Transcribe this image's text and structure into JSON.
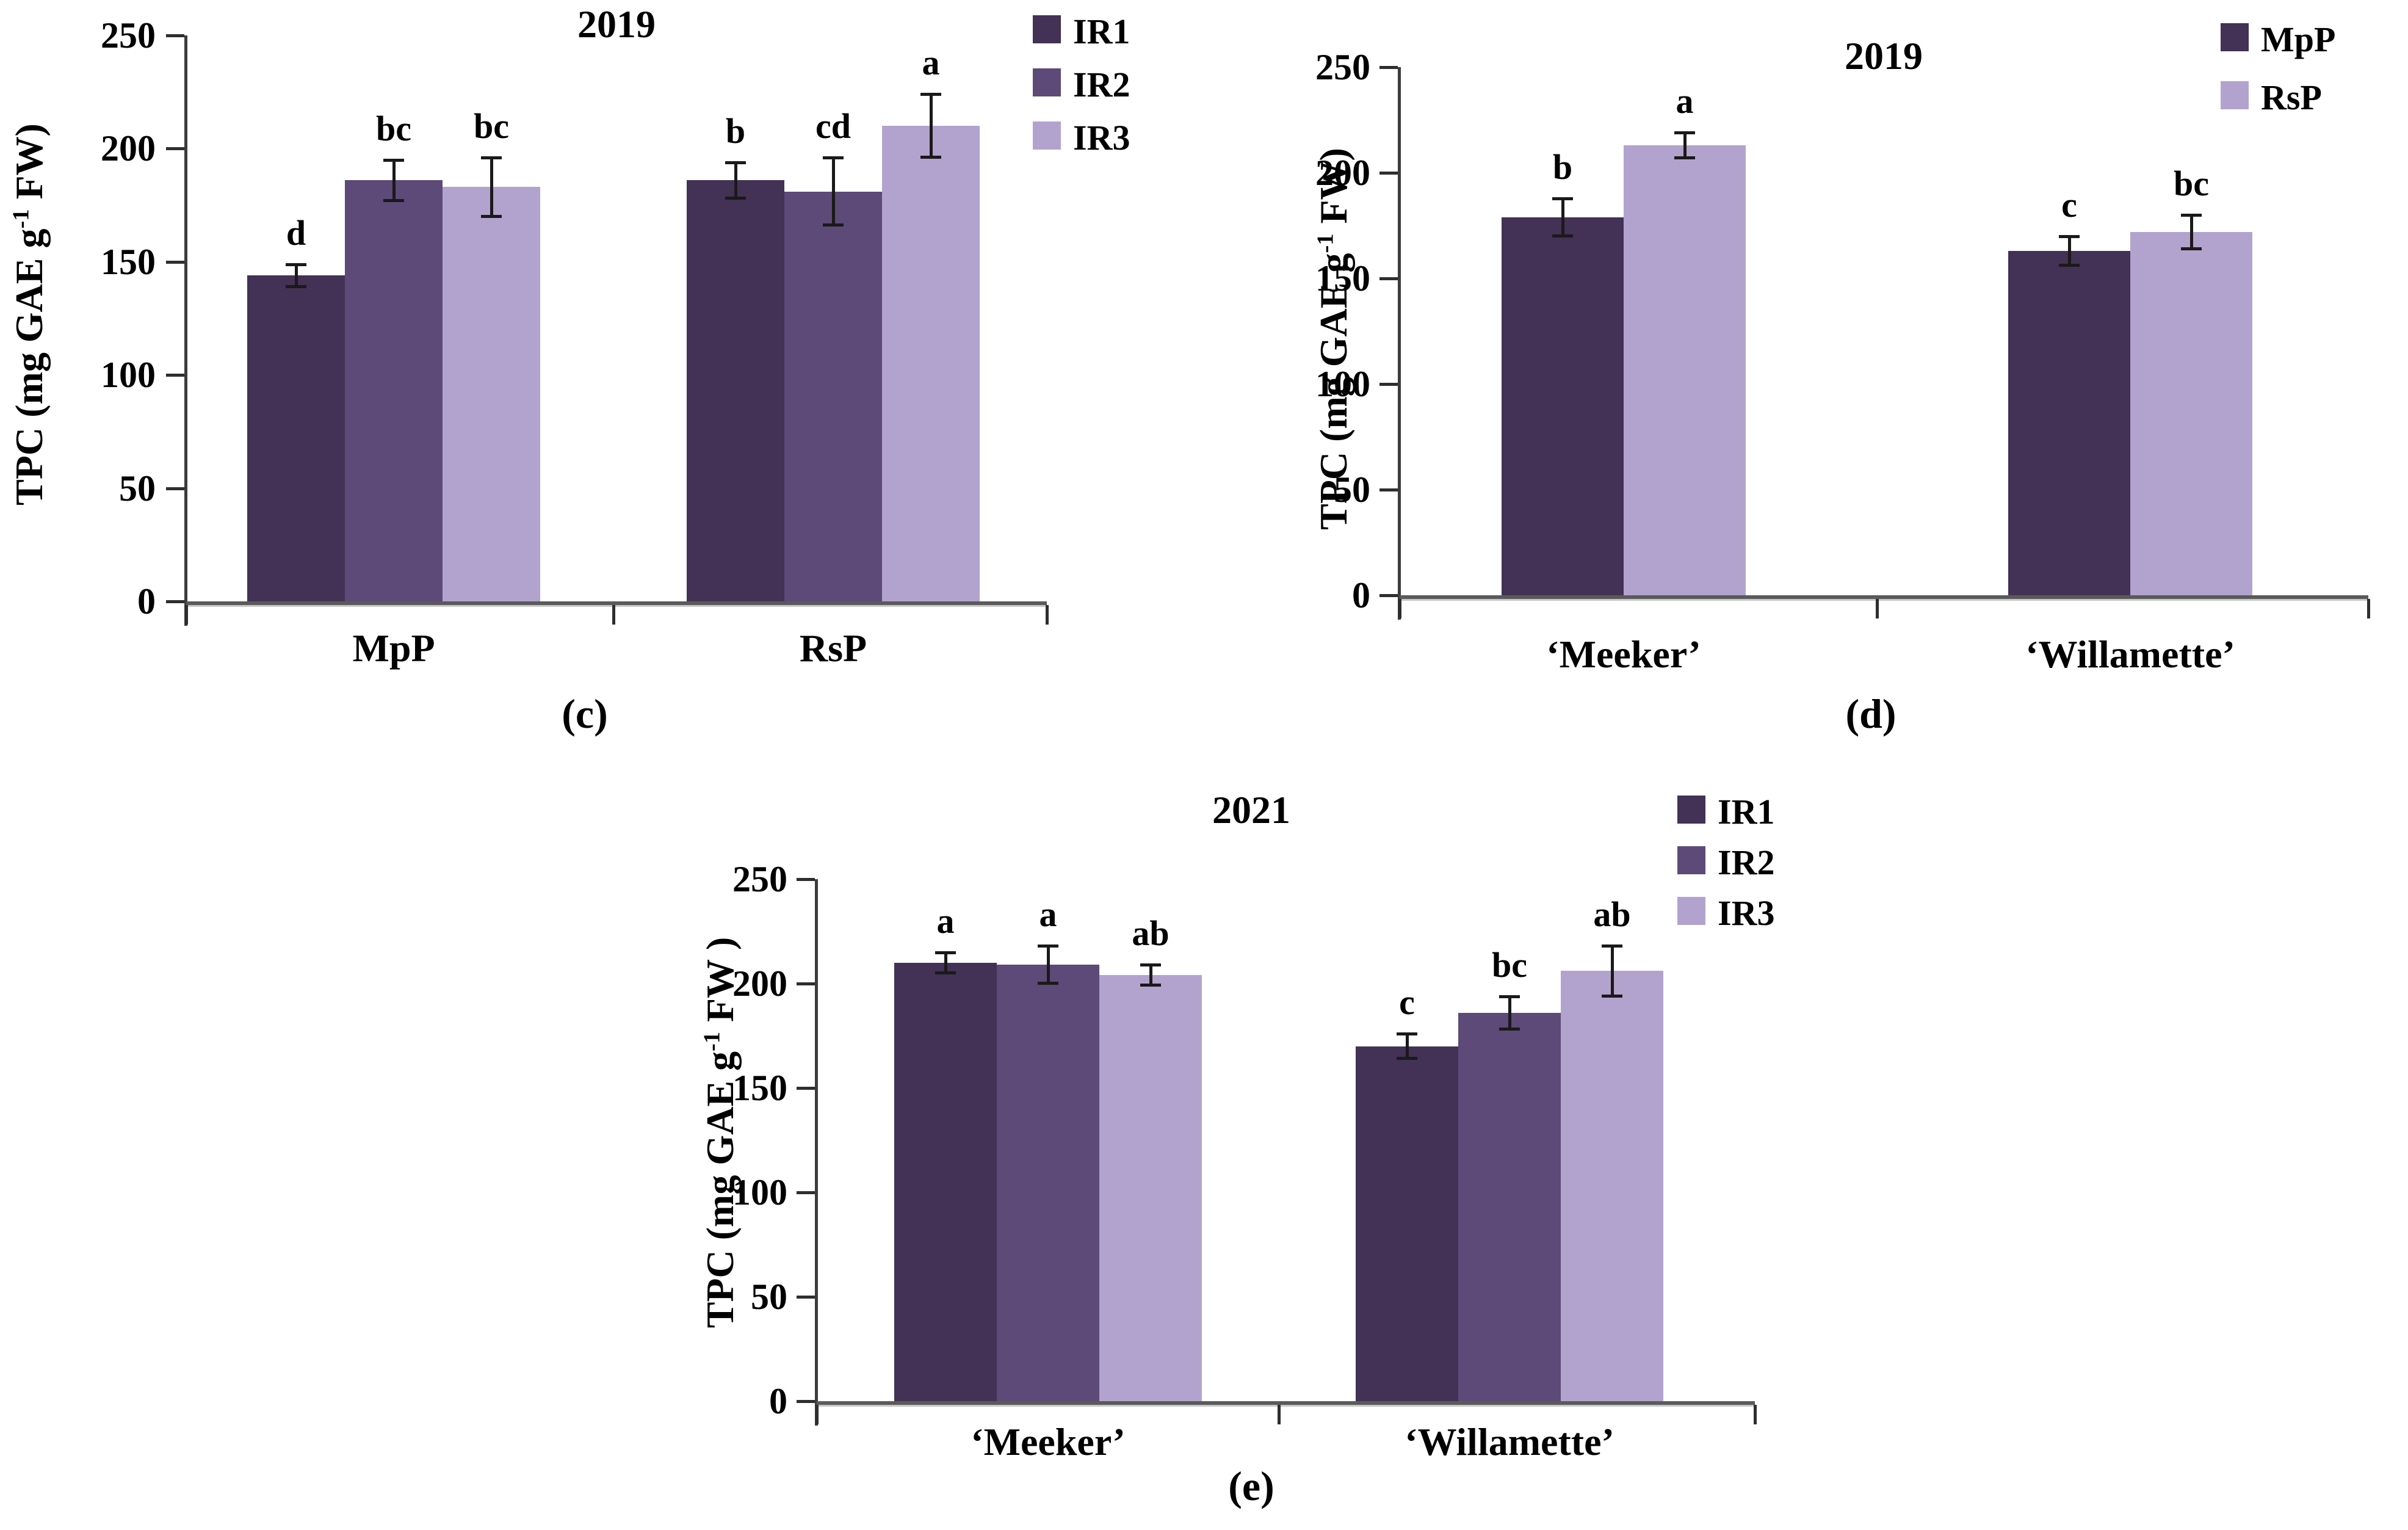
{
  "chart_data": [
    {
      "type": "bar",
      "panel_label": "(c)",
      "title": "2019",
      "ylabel": "TPC (mg GAE g⁻¹ FW)",
      "ylabel_parts": {
        "pre": "TPC (mg GAE g",
        "sup": "-1",
        "post": " FW)"
      },
      "xlabel": "",
      "ylim": [
        0,
        250
      ],
      "yticks": [
        0,
        50,
        100,
        150,
        200,
        250
      ],
      "grid": false,
      "legend_position": "top-right",
      "categories": [
        "MpP",
        "RsP"
      ],
      "series": [
        {
          "name": "IR1",
          "color": "#433156",
          "values": [
            144,
            186
          ],
          "errors": [
            5,
            8
          ],
          "letters": [
            "d",
            "b"
          ]
        },
        {
          "name": "IR2",
          "color": "#5d4a78",
          "values": [
            186,
            181
          ],
          "errors": [
            9,
            15
          ],
          "letters": [
            "bc",
            "cd"
          ]
        },
        {
          "name": "IR3",
          "color": "#b2a3ce",
          "values": [
            183,
            210
          ],
          "errors": [
            13,
            14
          ],
          "letters": [
            "bc",
            "a"
          ]
        }
      ]
    },
    {
      "type": "bar",
      "panel_label": "(d)",
      "title": "2019",
      "ylabel": "TPC (mg GAE g⁻¹ FW)",
      "ylabel_parts": {
        "pre": "TPC (mg GAE g",
        "sup": "-1",
        "post": " FW)"
      },
      "xlabel": "",
      "ylim": [
        0,
        250
      ],
      "yticks": [
        0,
        50,
        100,
        150,
        200,
        250
      ],
      "grid": false,
      "legend_position": "top-right",
      "categories": [
        "‘Meeker’",
        "‘Willamette’"
      ],
      "series": [
        {
          "name": "MpP",
          "color": "#433156",
          "values": [
            179,
            163
          ],
          "errors": [
            9,
            7
          ],
          "letters": [
            "b",
            "c"
          ]
        },
        {
          "name": "RsP",
          "color": "#b2a3ce",
          "values": [
            213,
            172
          ],
          "errors": [
            6,
            8
          ],
          "letters": [
            "a",
            "bc"
          ]
        }
      ]
    },
    {
      "type": "bar",
      "panel_label": "(e)",
      "title": "2021",
      "ylabel": "TPC (mg GAE g⁻¹ FW )",
      "ylabel_parts": {
        "pre": "TPC (mg GAE g",
        "sup": "-1",
        "post": " FW )"
      },
      "xlabel": "",
      "ylim": [
        0,
        250
      ],
      "yticks": [
        0,
        50,
        100,
        150,
        200,
        250
      ],
      "grid": false,
      "legend_position": "top-right",
      "categories": [
        "‘Meeker’",
        "‘Willamette’"
      ],
      "series": [
        {
          "name": "IR1",
          "color": "#433156",
          "values": [
            210,
            170
          ],
          "errors": [
            5,
            6
          ],
          "letters": [
            "a",
            "c"
          ]
        },
        {
          "name": "IR2",
          "color": "#5d4a78",
          "values": [
            209,
            186
          ],
          "errors": [
            9,
            8
          ],
          "letters": [
            "a",
            "bc"
          ]
        },
        {
          "name": "IR3",
          "color": "#b2a3ce",
          "values": [
            204,
            206
          ],
          "errors": [
            5,
            12
          ],
          "letters": [
            "ab",
            "ab"
          ]
        }
      ]
    }
  ],
  "style": {
    "axis_color": "#5a5a5a",
    "tick_color": "#2e2e2e",
    "error_bar_color": "#1a1a1a",
    "text_color": "#000000",
    "background": "#ffffff"
  }
}
